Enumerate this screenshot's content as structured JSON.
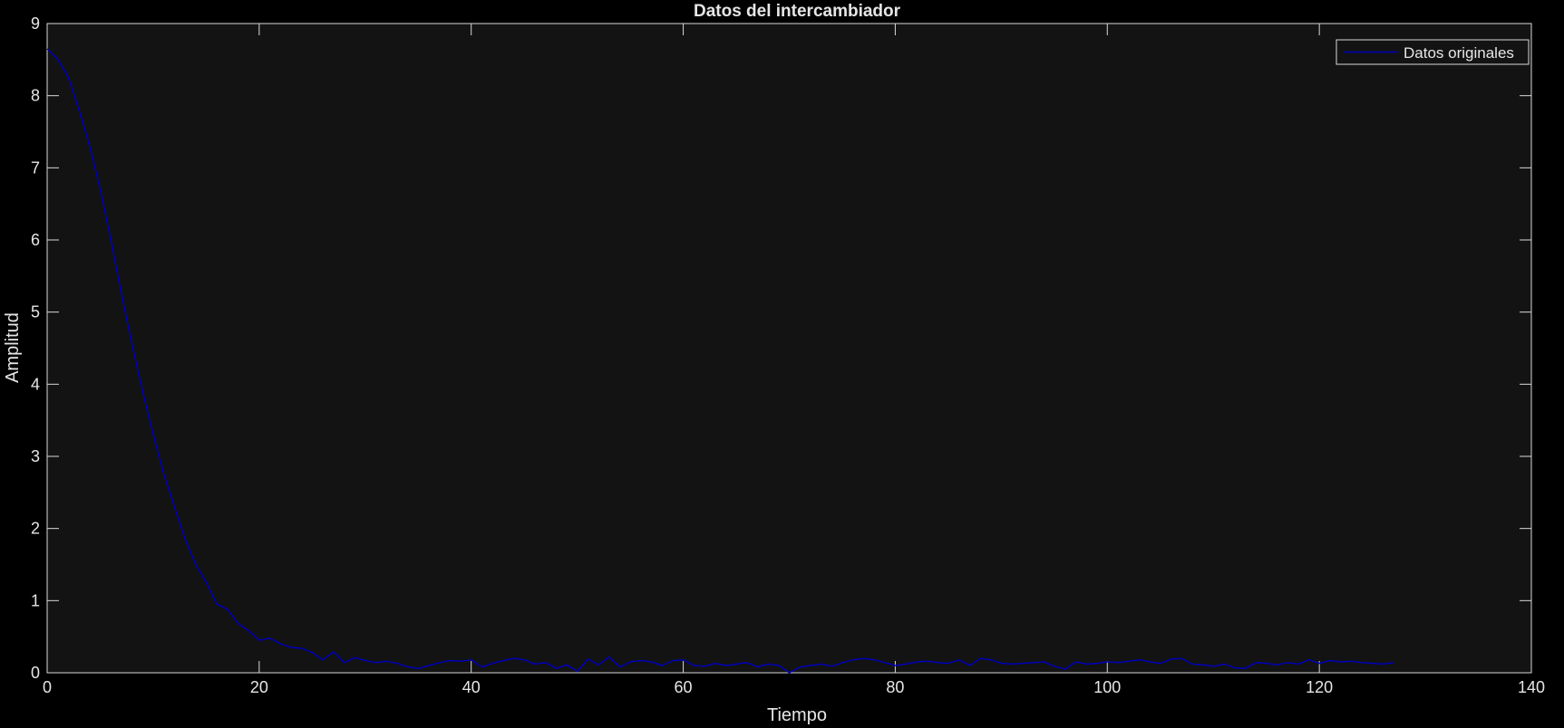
{
  "chart_data": {
    "type": "line",
    "title": "Datos del intercambiador",
    "xlabel": "Tiempo",
    "ylabel": "Amplitud",
    "xlim": [
      0,
      140
    ],
    "ylim": [
      0,
      9
    ],
    "xticks": [
      0,
      20,
      40,
      60,
      80,
      100,
      120,
      140
    ],
    "yticks": [
      0,
      1,
      2,
      3,
      4,
      5,
      6,
      7,
      8,
      9
    ],
    "grid": false,
    "legend": {
      "placement": "top-right",
      "entries": [
        "Datos originales"
      ]
    },
    "colors": {
      "figure_bg": "#000000",
      "axes_bg": "#131313",
      "axes_edge": "#d9d9d9",
      "text": "#e6e6e6",
      "series": "#0000bb"
    },
    "series": [
      {
        "name": "Datos originales",
        "x": [
          0,
          1,
          2,
          3,
          4,
          5,
          6,
          7,
          8,
          9,
          10,
          11,
          12,
          13,
          14,
          15,
          16,
          17,
          18,
          19,
          20,
          21,
          22,
          23,
          24,
          25,
          26,
          27,
          28,
          29,
          30,
          31,
          32,
          33,
          34,
          35,
          36,
          37,
          38,
          39,
          40,
          41,
          42,
          43,
          44,
          45,
          46,
          47,
          48,
          49,
          50,
          51,
          52,
          53,
          54,
          55,
          56,
          57,
          58,
          59,
          60,
          61,
          62,
          63,
          64,
          65,
          66,
          67,
          68,
          69,
          70,
          71,
          72,
          73,
          74,
          75,
          76,
          77,
          78,
          79,
          80,
          81,
          82,
          83,
          84,
          85,
          86,
          87,
          88,
          89,
          90,
          91,
          92,
          93,
          94,
          95,
          96,
          97,
          98,
          99,
          100,
          101,
          102,
          103,
          104,
          105,
          106,
          107,
          108,
          109,
          110,
          111,
          112,
          113,
          114,
          115,
          116,
          117,
          118,
          119,
          120,
          121,
          122,
          123,
          124,
          125,
          126,
          127
        ],
        "y": [
          8.65,
          8.5,
          8.25,
          7.8,
          7.3,
          6.7,
          6.0,
          5.25,
          4.55,
          3.9,
          3.3,
          2.75,
          2.3,
          1.85,
          1.5,
          1.25,
          0.95,
          0.88,
          0.68,
          0.58,
          0.45,
          0.48,
          0.4,
          0.35,
          0.34,
          0.28,
          0.18,
          0.29,
          0.14,
          0.21,
          0.17,
          0.14,
          0.16,
          0.13,
          0.08,
          0.06,
          0.1,
          0.14,
          0.17,
          0.16,
          0.18,
          0.08,
          0.13,
          0.17,
          0.2,
          0.18,
          0.12,
          0.14,
          0.06,
          0.11,
          0.02,
          0.19,
          0.11,
          0.22,
          0.08,
          0.15,
          0.17,
          0.15,
          0.1,
          0.17,
          0.18,
          0.1,
          0.09,
          0.13,
          0.1,
          0.12,
          0.14,
          0.08,
          0.12,
          0.1,
          0.0,
          0.08,
          0.1,
          0.12,
          0.09,
          0.14,
          0.18,
          0.2,
          0.18,
          0.14,
          0.1,
          0.12,
          0.15,
          0.16,
          0.14,
          0.13,
          0.18,
          0.1,
          0.2,
          0.18,
          0.13,
          0.12,
          0.13,
          0.14,
          0.15,
          0.09,
          0.05,
          0.15,
          0.12,
          0.13,
          0.15,
          0.14,
          0.16,
          0.18,
          0.15,
          0.13,
          0.19,
          0.2,
          0.12,
          0.11,
          0.09,
          0.12,
          0.07,
          0.06,
          0.14,
          0.13,
          0.11,
          0.14,
          0.12,
          0.18,
          0.13,
          0.17,
          0.15,
          0.16,
          0.14,
          0.13,
          0.12,
          0.14
        ]
      }
    ]
  }
}
